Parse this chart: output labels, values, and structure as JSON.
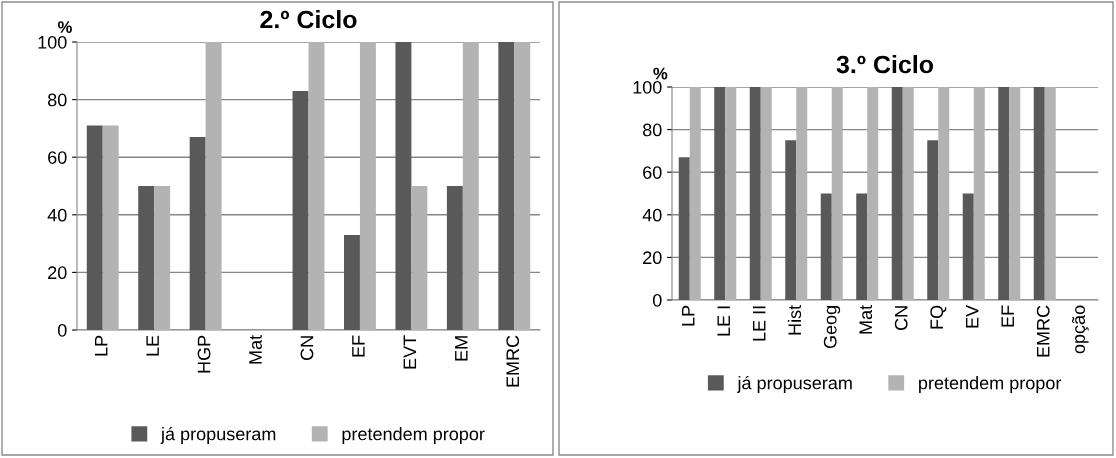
{
  "chart_data": [
    {
      "type": "bar",
      "title": "2.º Ciclo",
      "ylabel": "%",
      "categories": [
        "LP",
        "LE",
        "HGP",
        "Mat",
        "CN",
        "EF",
        "EVT",
        "EM",
        "EMRC"
      ],
      "series": [
        {
          "name": "já propuseram",
          "color": "#595959",
          "values": [
            71,
            50,
            67,
            0,
            83,
            33,
            100,
            50,
            100
          ]
        },
        {
          "name": "pretendem propor",
          "color": "#b3b3b3",
          "values": [
            71,
            50,
            100,
            0,
            100,
            100,
            50,
            100,
            100
          ]
        }
      ],
      "ylim": [
        0,
        100
      ],
      "yticks": [
        0,
        20,
        40,
        60,
        80,
        100
      ],
      "grid": "y",
      "legend": "bottom"
    },
    {
      "type": "bar",
      "title": "3.º Ciclo",
      "ylabel": "%",
      "categories": [
        "LP",
        "LE I",
        "LE II",
        "Hist",
        "Geog",
        "Mat",
        "CN",
        "FQ",
        "EV",
        "EF",
        "EMRC",
        "opção"
      ],
      "series": [
        {
          "name": "já propuseram",
          "color": "#595959",
          "values": [
            67,
            100,
            100,
            75,
            50,
            50,
            100,
            75,
            50,
            100,
            100,
            0
          ]
        },
        {
          "name": "pretendem propor",
          "color": "#b3b3b3",
          "values": [
            100,
            100,
            100,
            100,
            100,
            100,
            100,
            100,
            100,
            100,
            100,
            0
          ]
        }
      ],
      "ylim": [
        0,
        100
      ],
      "yticks": [
        0,
        20,
        40,
        60,
        80,
        100
      ],
      "grid": "y",
      "legend": "bottom"
    }
  ]
}
